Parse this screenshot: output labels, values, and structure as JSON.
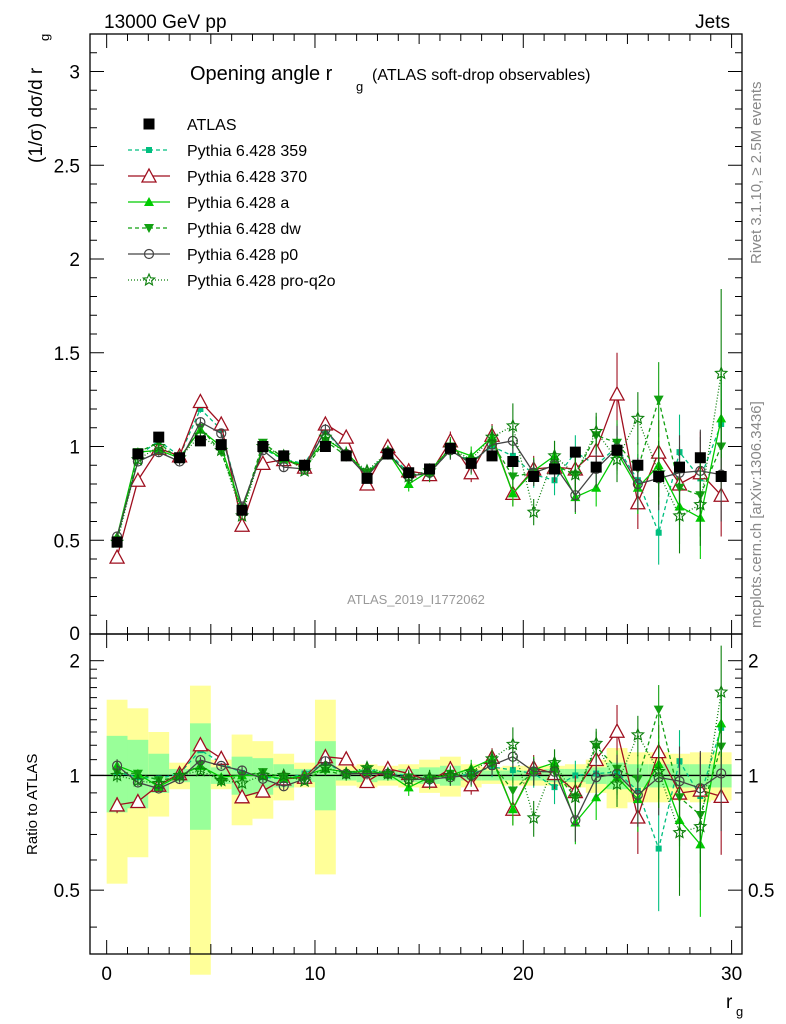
{
  "header": {
    "left": "13000 GeV pp",
    "right": "Jets",
    "title_main": "Opening angle r",
    "title_sub": "g",
    "title_tail": "(ATLAS soft-drop observables)",
    "analysis_id": "ATLAS_2019_I1772062",
    "side_rivet": "Rivet 3.1.10, ≥ 2.5M events",
    "side_mcplots": "mcplots.cern.ch [arXiv:1306.3436]"
  },
  "axes": {
    "ylabel_main": "(1/σ) dσ/d r",
    "ylabel_main_sub": "g",
    "ylabel_ratio": "Ratio to ATLAS",
    "xlabel": "r",
    "xlabel_sub": "g",
    "x_ticks": [
      "0",
      "10",
      "20",
      "30"
    ],
    "y_ticks_main": [
      "0",
      "0.5",
      "1",
      "1.5",
      "2",
      "2.5",
      "3"
    ],
    "y_ticks_ratio": [
      "0.5",
      "1",
      "2"
    ]
  },
  "colors": {
    "atlas": "#000000",
    "p359": "#00bf7f",
    "p370": "#9f0f1f",
    "pa": "#00cc00",
    "pdw": "#11a011",
    "pp0": "#444444",
    "pq2o": "#0b7f0b",
    "band_yellow": "#ffff99",
    "band_green": "#99ff99"
  },
  "chart_data": {
    "type": "line",
    "xlim": [
      -0.8,
      30.5
    ],
    "ylim_main": [
      0,
      3.2
    ],
    "ylim_ratio": [
      0.34,
      2.35
    ],
    "y_scale_ratio": "log",
    "x": [
      0.5,
      1.5,
      2.5,
      3.5,
      4.5,
      5.5,
      6.5,
      7.5,
      8.5,
      9.5,
      10.5,
      11.5,
      12.5,
      13.5,
      14.5,
      15.5,
      16.5,
      17.5,
      18.5,
      19.5,
      20.5,
      21.5,
      22.5,
      23.5,
      24.5,
      25.5,
      26.5,
      27.5,
      28.5,
      29.5
    ],
    "atlas": [
      0.49,
      0.96,
      1.05,
      0.94,
      1.03,
      1.01,
      0.66,
      1.0,
      0.95,
      0.9,
      1.0,
      0.95,
      0.83,
      0.96,
      0.86,
      0.88,
      0.99,
      0.91,
      0.95,
      0.92,
      0.84,
      0.88,
      0.97,
      0.89,
      0.98,
      0.9,
      0.84,
      0.89,
      0.94,
      0.84
    ],
    "band_yellow": [
      [
        0.52,
        1.58
      ],
      [
        0.61,
        1.5
      ],
      [
        0.78,
        1.3
      ],
      [
        0.92,
        1.08
      ],
      [
        0.3,
        1.72
      ],
      [
        0.92,
        1.1
      ],
      [
        0.74,
        1.28
      ],
      [
        0.77,
        1.23
      ],
      [
        0.86,
        1.14
      ],
      [
        0.93,
        1.08
      ],
      [
        0.55,
        1.58
      ],
      [
        0.94,
        1.06
      ],
      [
        0.93,
        1.07
      ],
      [
        0.94,
        1.06
      ],
      [
        0.93,
        1.07
      ],
      [
        0.9,
        1.1
      ],
      [
        0.88,
        1.12
      ],
      [
        0.93,
        1.07
      ],
      [
        0.95,
        1.05
      ],
      [
        0.94,
        1.06
      ],
      [
        0.94,
        1.06
      ],
      [
        0.94,
        1.06
      ],
      [
        0.93,
        1.07
      ],
      [
        0.9,
        1.1
      ],
      [
        0.82,
        1.18
      ],
      [
        0.85,
        1.15
      ],
      [
        0.85,
        1.15
      ],
      [
        0.86,
        1.14
      ],
      [
        0.85,
        1.15
      ],
      [
        0.86,
        1.15
      ]
    ],
    "band_green": [
      [
        0.8,
        1.27
      ],
      [
        0.82,
        1.24
      ],
      [
        0.9,
        1.14
      ],
      [
        0.96,
        1.04
      ],
      [
        0.72,
        1.37
      ],
      [
        0.95,
        1.05
      ],
      [
        0.89,
        1.12
      ],
      [
        0.89,
        1.11
      ],
      [
        0.93,
        1.07
      ],
      [
        0.96,
        1.04
      ],
      [
        0.81,
        1.23
      ],
      [
        0.97,
        1.03
      ],
      [
        0.96,
        1.04
      ],
      [
        0.97,
        1.03
      ],
      [
        0.96,
        1.04
      ],
      [
        0.95,
        1.05
      ],
      [
        0.94,
        1.06
      ],
      [
        0.97,
        1.03
      ],
      [
        0.97,
        1.03
      ],
      [
        0.97,
        1.03
      ],
      [
        0.97,
        1.03
      ],
      [
        0.96,
        1.04
      ],
      [
        0.96,
        1.04
      ],
      [
        0.95,
        1.05
      ],
      [
        0.92,
        1.08
      ],
      [
        0.93,
        1.07
      ],
      [
        0.93,
        1.07
      ],
      [
        0.93,
        1.07
      ],
      [
        0.93,
        1.07
      ],
      [
        0.93,
        1.07
      ]
    ],
    "series": [
      {
        "name": "Pythia 6.428 359",
        "key": "p359",
        "dash": "4,3",
        "marker": "square",
        "values": [
          0.5,
          0.95,
          1.03,
          0.95,
          1.2,
          1.09,
          0.67,
          0.99,
          0.93,
          0.91,
          1.08,
          0.96,
          0.86,
          0.97,
          0.86,
          0.86,
          0.98,
          0.92,
          1.0,
          0.95,
          0.85,
          0.82,
          0.97,
          0.9,
          1.0,
          0.82,
          0.54,
          0.97,
          0.83,
          1.12
        ],
        "err": [
          0.02,
          0.02,
          0.02,
          0.02,
          0.02,
          0.02,
          0.02,
          0.02,
          0.02,
          0.02,
          0.03,
          0.03,
          0.03,
          0.03,
          0.04,
          0.04,
          0.05,
          0.05,
          0.06,
          0.07,
          0.07,
          0.08,
          0.09,
          0.1,
          0.12,
          0.14,
          0.17,
          0.2,
          0.22,
          0.25
        ]
      },
      {
        "name": "Pythia 6.428 370",
        "key": "p370",
        "dash": "",
        "marker": "triangle-open",
        "values": [
          0.41,
          0.82,
          0.99,
          0.95,
          1.24,
          1.12,
          0.58,
          0.91,
          0.93,
          0.89,
          1.12,
          1.05,
          0.8,
          1.0,
          0.87,
          0.85,
          1.03,
          0.86,
          1.06,
          0.75,
          0.88,
          0.89,
          0.88,
          0.98,
          1.28,
          0.7,
          0.97,
          0.8,
          0.86,
          0.74
        ],
        "err": [
          0.02,
          0.02,
          0.02,
          0.02,
          0.02,
          0.02,
          0.02,
          0.02,
          0.02,
          0.02,
          0.03,
          0.03,
          0.03,
          0.03,
          0.04,
          0.04,
          0.05,
          0.05,
          0.06,
          0.07,
          0.07,
          0.08,
          0.09,
          0.1,
          0.22,
          0.14,
          0.17,
          0.2,
          0.22,
          0.22
        ]
      },
      {
        "name": "Pythia 6.428 a",
        "key": "pa",
        "dash": "",
        "marker": "triangle",
        "values": [
          0.52,
          0.97,
          0.98,
          0.94,
          1.09,
          1.0,
          0.66,
          1.0,
          0.93,
          0.9,
          1.04,
          0.97,
          0.85,
          0.97,
          0.8,
          0.87,
          0.99,
          0.95,
          1.05,
          0.75,
          0.87,
          0.95,
          0.73,
          0.78,
          0.97,
          0.78,
          0.9,
          0.68,
          0.62,
          1.15
        ],
        "err": [
          0.02,
          0.02,
          0.02,
          0.02,
          0.02,
          0.02,
          0.02,
          0.02,
          0.02,
          0.02,
          0.03,
          0.03,
          0.03,
          0.03,
          0.04,
          0.04,
          0.05,
          0.05,
          0.06,
          0.07,
          0.07,
          0.08,
          0.09,
          0.1,
          0.12,
          0.14,
          0.17,
          0.2,
          0.22,
          0.25
        ]
      },
      {
        "name": "Pythia 6.428 dw",
        "key": "pdw",
        "dash": "4,3",
        "marker": "triangle-down",
        "values": [
          0.5,
          0.97,
          1.02,
          0.93,
          1.1,
          0.97,
          0.66,
          1.02,
          0.94,
          0.88,
          1.03,
          0.95,
          0.86,
          0.96,
          0.85,
          0.85,
          1.0,
          0.9,
          1.02,
          0.84,
          0.86,
          0.9,
          0.85,
          1.06,
          1.02,
          0.88,
          1.25,
          0.78,
          0.74,
          1.0
        ],
        "err": [
          0.02,
          0.02,
          0.02,
          0.02,
          0.02,
          0.02,
          0.02,
          0.02,
          0.02,
          0.02,
          0.03,
          0.03,
          0.03,
          0.03,
          0.04,
          0.04,
          0.05,
          0.05,
          0.06,
          0.07,
          0.07,
          0.08,
          0.09,
          0.1,
          0.12,
          0.14,
          0.2,
          0.2,
          0.22,
          0.25
        ]
      },
      {
        "name": "Pythia 6.428 p0",
        "key": "pp0",
        "dash": "",
        "marker": "circle-open",
        "values": [
          0.52,
          0.92,
          0.97,
          0.92,
          1.13,
          1.07,
          0.68,
          0.98,
          0.89,
          0.88,
          1.09,
          0.96,
          0.84,
          0.97,
          0.84,
          0.86,
          0.98,
          0.91,
          1.01,
          1.03,
          0.86,
          0.9,
          0.74,
          0.88,
          0.99,
          0.8,
          0.83,
          0.86,
          0.87,
          0.85
        ],
        "err": [
          0.02,
          0.02,
          0.02,
          0.02,
          0.02,
          0.02,
          0.02,
          0.02,
          0.02,
          0.02,
          0.03,
          0.03,
          0.03,
          0.03,
          0.04,
          0.04,
          0.05,
          0.05,
          0.06,
          0.07,
          0.07,
          0.08,
          0.09,
          0.1,
          0.12,
          0.14,
          0.17,
          0.2,
          0.22,
          0.25
        ]
      },
      {
        "name": "Pythia 6.428 pro-q2o",
        "key": "pq2o",
        "dash": "1,2",
        "marker": "star",
        "values": [
          0.49,
          0.93,
          1.0,
          0.94,
          1.06,
          0.98,
          0.63,
          1.0,
          0.95,
          0.87,
          1.05,
          0.96,
          0.87,
          0.97,
          0.84,
          0.87,
          0.99,
          0.93,
          1.05,
          1.11,
          0.65,
          0.95,
          0.85,
          1.08,
          0.93,
          1.15,
          0.86,
          0.63,
          0.69,
          1.39
        ],
        "err": [
          0.02,
          0.02,
          0.02,
          0.02,
          0.02,
          0.02,
          0.02,
          0.02,
          0.02,
          0.02,
          0.03,
          0.03,
          0.03,
          0.03,
          0.04,
          0.04,
          0.05,
          0.05,
          0.06,
          0.12,
          0.07,
          0.08,
          0.09,
          0.1,
          0.12,
          0.14,
          0.17,
          0.2,
          0.22,
          0.45
        ]
      }
    ],
    "legend_atlas": "ATLAS",
    "legend_position": "top-left"
  }
}
